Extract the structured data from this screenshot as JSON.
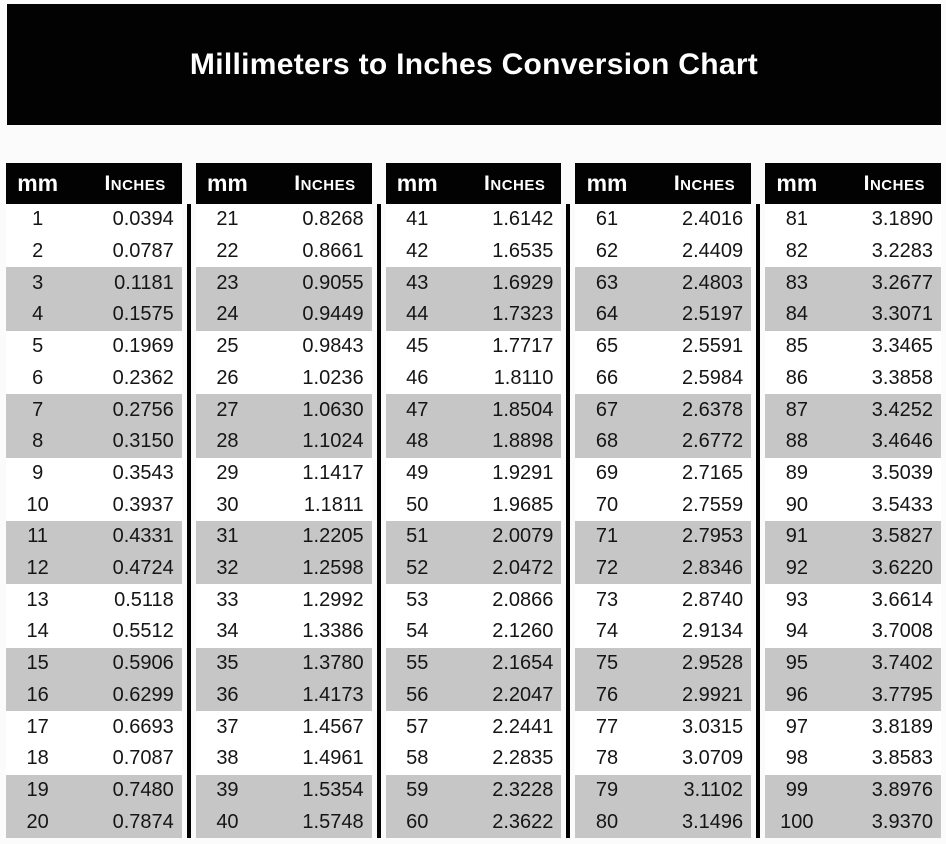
{
  "title": "Millimeters to Inches Conversion Chart",
  "headers": {
    "mm": "mm",
    "inches": "Inches"
  },
  "layout": {
    "column_groups": 5,
    "rows_per_group": 20,
    "shading_pattern": "two white rows alternating with two gray rows"
  },
  "colors": {
    "banner_bg": "#020202",
    "banner_text": "#ffffff",
    "header_bg": "#020202",
    "header_text": "#ffffff",
    "row_white": "#ffffff",
    "row_gray": "#c6c6c6",
    "value_text": "#151515",
    "divider": "#000000",
    "page_bg": "#fbfbfb"
  },
  "chart_data": {
    "type": "table",
    "title": "Millimeters to Inches Conversion Chart",
    "columns": [
      "mm",
      "Inches"
    ],
    "rows": [
      [
        "1",
        "0.0394"
      ],
      [
        "2",
        "0.0787"
      ],
      [
        "3",
        "0.1181"
      ],
      [
        "4",
        "0.1575"
      ],
      [
        "5",
        "0.1969"
      ],
      [
        "6",
        "0.2362"
      ],
      [
        "7",
        "0.2756"
      ],
      [
        "8",
        "0.3150"
      ],
      [
        "9",
        "0.3543"
      ],
      [
        "10",
        "0.3937"
      ],
      [
        "11",
        "0.4331"
      ],
      [
        "12",
        "0.4724"
      ],
      [
        "13",
        "0.5118"
      ],
      [
        "14",
        "0.5512"
      ],
      [
        "15",
        "0.5906"
      ],
      [
        "16",
        "0.6299"
      ],
      [
        "17",
        "0.6693"
      ],
      [
        "18",
        "0.7087"
      ],
      [
        "19",
        "0.7480"
      ],
      [
        "20",
        "0.7874"
      ],
      [
        "21",
        "0.8268"
      ],
      [
        "22",
        "0.8661"
      ],
      [
        "23",
        "0.9055"
      ],
      [
        "24",
        "0.9449"
      ],
      [
        "25",
        "0.9843"
      ],
      [
        "26",
        "1.0236"
      ],
      [
        "27",
        "1.0630"
      ],
      [
        "28",
        "1.1024"
      ],
      [
        "29",
        "1.1417"
      ],
      [
        "30",
        "1.1811"
      ],
      [
        "31",
        "1.2205"
      ],
      [
        "32",
        "1.2598"
      ],
      [
        "33",
        "1.2992"
      ],
      [
        "34",
        "1.3386"
      ],
      [
        "35",
        "1.3780"
      ],
      [
        "36",
        "1.4173"
      ],
      [
        "37",
        "1.4567"
      ],
      [
        "38",
        "1.4961"
      ],
      [
        "39",
        "1.5354"
      ],
      [
        "40",
        "1.5748"
      ],
      [
        "41",
        "1.6142"
      ],
      [
        "42",
        "1.6535"
      ],
      [
        "43",
        "1.6929"
      ],
      [
        "44",
        "1.7323"
      ],
      [
        "45",
        "1.7717"
      ],
      [
        "46",
        "1.8110"
      ],
      [
        "47",
        "1.8504"
      ],
      [
        "48",
        "1.8898"
      ],
      [
        "49",
        "1.9291"
      ],
      [
        "50",
        "1.9685"
      ],
      [
        "51",
        "2.0079"
      ],
      [
        "52",
        "2.0472"
      ],
      [
        "53",
        "2.0866"
      ],
      [
        "54",
        "2.1260"
      ],
      [
        "55",
        "2.1654"
      ],
      [
        "56",
        "2.2047"
      ],
      [
        "57",
        "2.2441"
      ],
      [
        "58",
        "2.2835"
      ],
      [
        "59",
        "2.3228"
      ],
      [
        "60",
        "2.3622"
      ],
      [
        "61",
        "2.4016"
      ],
      [
        "62",
        "2.4409"
      ],
      [
        "63",
        "2.4803"
      ],
      [
        "64",
        "2.5197"
      ],
      [
        "65",
        "2.5591"
      ],
      [
        "66",
        "2.5984"
      ],
      [
        "67",
        "2.6378"
      ],
      [
        "68",
        "2.6772"
      ],
      [
        "69",
        "2.7165"
      ],
      [
        "70",
        "2.7559"
      ],
      [
        "71",
        "2.7953"
      ],
      [
        "72",
        "2.8346"
      ],
      [
        "73",
        "2.8740"
      ],
      [
        "74",
        "2.9134"
      ],
      [
        "75",
        "2.9528"
      ],
      [
        "76",
        "2.9921"
      ],
      [
        "77",
        "3.0315"
      ],
      [
        "78",
        "3.0709"
      ],
      [
        "79",
        "3.1102"
      ],
      [
        "80",
        "3.1496"
      ],
      [
        "81",
        "3.1890"
      ],
      [
        "82",
        "3.2283"
      ],
      [
        "83",
        "3.2677"
      ],
      [
        "84",
        "3.3071"
      ],
      [
        "85",
        "3.3465"
      ],
      [
        "86",
        "3.3858"
      ],
      [
        "87",
        "3.4252"
      ],
      [
        "88",
        "3.4646"
      ],
      [
        "89",
        "3.5039"
      ],
      [
        "90",
        "3.5433"
      ],
      [
        "91",
        "3.5827"
      ],
      [
        "92",
        "3.6220"
      ],
      [
        "93",
        "3.6614"
      ],
      [
        "94",
        "3.7008"
      ],
      [
        "95",
        "3.7402"
      ],
      [
        "96",
        "3.7795"
      ],
      [
        "97",
        "3.8189"
      ],
      [
        "98",
        "3.8583"
      ],
      [
        "99",
        "3.8976"
      ],
      [
        "100",
        "3.9370"
      ]
    ]
  }
}
